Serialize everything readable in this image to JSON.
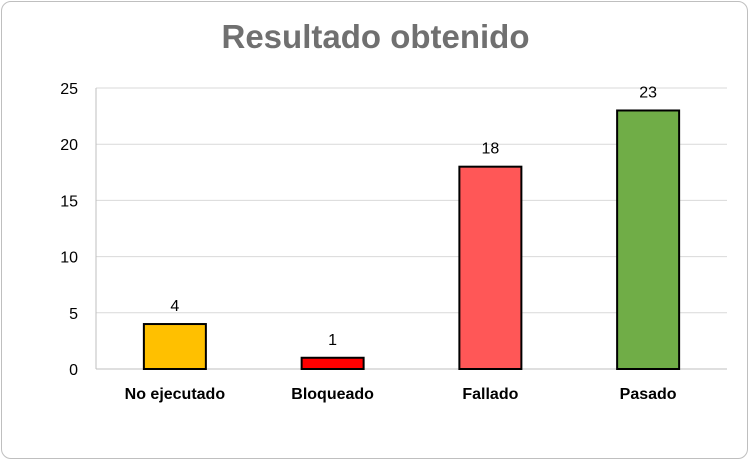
{
  "chart_data": {
    "type": "bar",
    "title": "Resultado obtenido",
    "xlabel": "",
    "ylabel": "",
    "ylim": [
      0,
      25
    ],
    "yticks": [
      0,
      5,
      10,
      15,
      20,
      25
    ],
    "grid": true,
    "legend": "none",
    "categories": [
      "No ejecutado",
      "Bloqueado",
      "Fallado",
      "Pasado"
    ],
    "values": [
      4,
      1,
      18,
      23
    ],
    "colors": [
      "#ffc000",
      "#ff0000",
      "#ff5757",
      "#70ad47"
    ],
    "data_labels": [
      "4",
      "1",
      "18",
      "23"
    ]
  }
}
